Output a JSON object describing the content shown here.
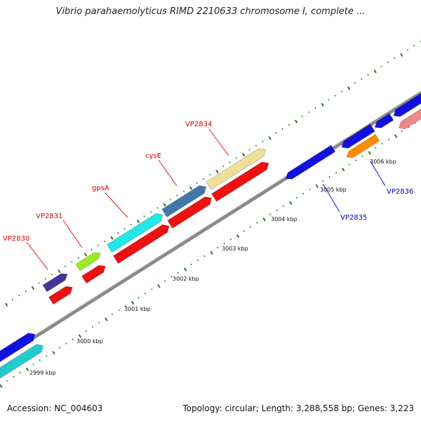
{
  "title": "Vibrio parahaemolyticus RIMD 2210633 chromosome I, complete ...",
  "footer": {
    "accession": "Accession: NC_004603",
    "summary": "Topology: circular; Length: 3,288,558 bp; Genes: 3,223"
  },
  "colors": {
    "backbone": "#8a8a8a",
    "tick": "#1f7a1f",
    "label_top": "#e00000",
    "label_bottom": "#0000cc"
  },
  "tick_labels": [
    "2999 kbp",
    "3000 kbp",
    "3001 kbp",
    "3002 kbp",
    "3003 kbp",
    "3004 kbp",
    "3005 kbp",
    "3006 kbp"
  ],
  "genes_top": [
    {
      "label": "VP2830",
      "color": "#443399"
    },
    {
      "label": "VP2831",
      "color": "#99ee22"
    },
    {
      "label": "gpsA",
      "color": "#22e8e8"
    },
    {
      "label": "cysE",
      "color": "#4477aa"
    },
    {
      "label": "VP2834",
      "color": "#eee099"
    }
  ],
  "genes_bottom": [
    {
      "label": "VP2835",
      "color": "#1111dd"
    },
    {
      "label": "VP2836",
      "color": "#ff8c00"
    }
  ],
  "other_features": {
    "red_arrow_color": "#ee1111",
    "blue_arrow_color": "#1111dd",
    "pink_arrow_color": "#ee8888",
    "cyan_arrow_color": "#22cccc"
  }
}
